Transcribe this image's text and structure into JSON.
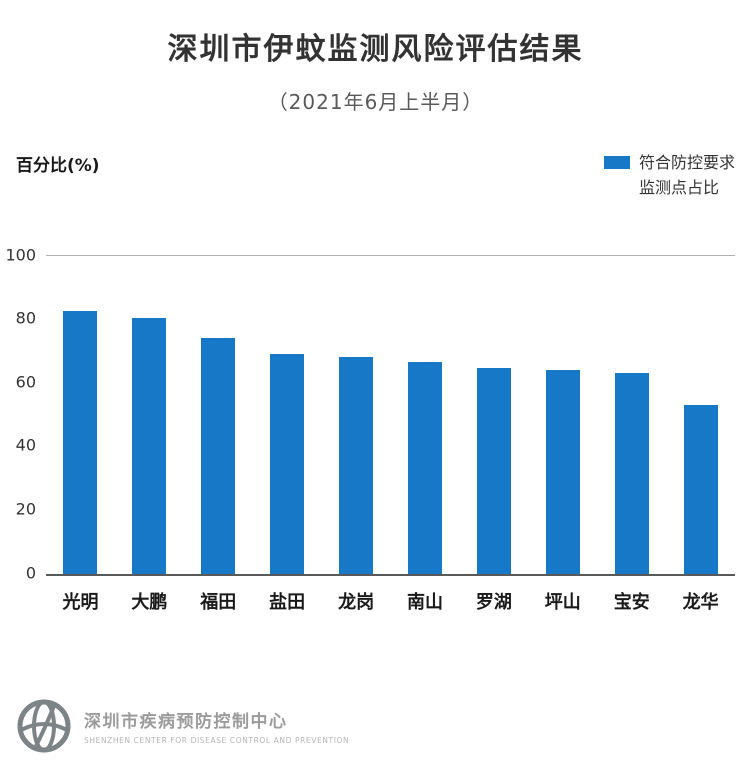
{
  "header": {
    "title": "深圳市伊蚊监测风险评估结果",
    "subtitle": "（2021年6月上半月）"
  },
  "axis_unit_label": "百分比(%)",
  "legend": {
    "line1": "符合防控要求",
    "line2": "监测点占比"
  },
  "chart_data": {
    "type": "bar",
    "title": "深圳市伊蚊监测风险评估结果",
    "subtitle": "（2021年6月上半月）",
    "ylabel": "百分比(%)",
    "categories": [
      "光明",
      "大鹏",
      "福田",
      "盐田",
      "龙岗",
      "南山",
      "罗湖",
      "坪山",
      "宝安",
      "龙华"
    ],
    "values": [
      82.5,
      80.5,
      74,
      69,
      68,
      66.5,
      64.5,
      64,
      63,
      53
    ],
    "series": [
      {
        "name": "符合防控要求监测点占比",
        "values": [
          82.5,
          80.5,
          74,
          69,
          68,
          66.5,
          64.5,
          64,
          63,
          53
        ]
      }
    ],
    "ylim": [
      0,
      100
    ],
    "yticks": [
      100,
      80,
      60,
      40,
      20,
      0
    ],
    "bar_color": "#1778c8",
    "grid": false,
    "legend_position": "top-right"
  },
  "footer": {
    "org_cn": "深圳市疾病预防控制中心",
    "org_en": "SHENZHEN CENTER FOR DISEASE CONTROL AND PREVENTION"
  }
}
